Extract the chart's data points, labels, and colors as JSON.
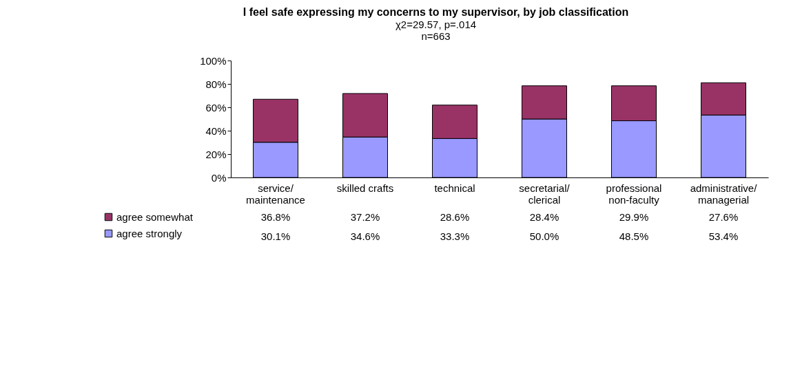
{
  "chart_data": {
    "type": "bar",
    "stacked": true,
    "title": "I feel safe expressing my concerns to my supervisor, by job classification",
    "subtitle": "χ2=29.57, p=.014\nn=663",
    "categories": [
      "service/\nmaintenance",
      "skilled crafts",
      "technical",
      "secretarial/\nclerical",
      "professional\nnon-faculty",
      "administrative/\nmanagerial"
    ],
    "series": [
      {
        "name": "agree strongly",
        "color": "#9999ff",
        "values": [
          30.1,
          34.6,
          33.3,
          50.0,
          48.5,
          53.4
        ],
        "value_labels": [
          "30.1%",
          "34.6%",
          "33.3%",
          "50.0%",
          "48.5%",
          "53.4%"
        ]
      },
      {
        "name": "agree somewhat",
        "color": "#993366",
        "values": [
          36.8,
          37.2,
          28.6,
          28.4,
          29.9,
          27.6
        ],
        "value_labels": [
          "36.8%",
          "37.2%",
          "28.6%",
          "28.4%",
          "29.9%",
          "27.6%"
        ]
      }
    ],
    "ylim": [
      0,
      100
    ],
    "yticks": [
      {
        "value": 0,
        "label": "0%"
      },
      {
        "value": 20,
        "label": "20%"
      },
      {
        "value": 40,
        "label": "40%"
      },
      {
        "value": 60,
        "label": "60%"
      },
      {
        "value": 80,
        "label": "80%"
      },
      {
        "value": 100,
        "label": "100%"
      }
    ],
    "grid": false,
    "legend": "bottom left"
  }
}
